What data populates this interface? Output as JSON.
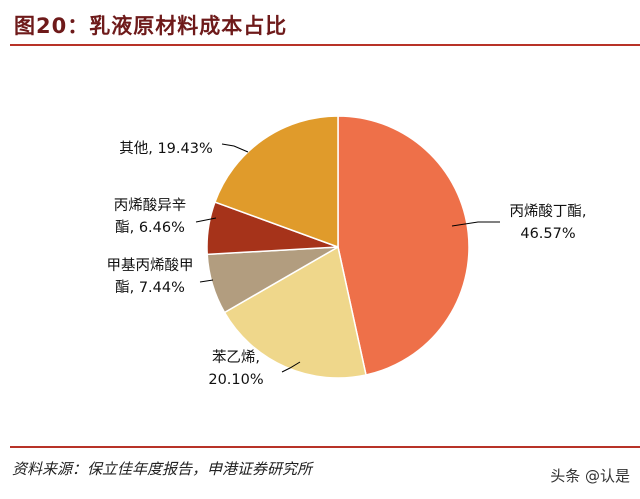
{
  "title": "图20：乳液原材料成本占比",
  "source": "资料来源：保立佳年度报告，申港证券研究所",
  "watermark": "头条 @认是",
  "chart_data": {
    "type": "pie",
    "title": "乳液原材料成本占比",
    "start": "12 o'clock, clockwise",
    "slices": [
      {
        "name": "丙烯酸丁酯",
        "value": 46.57,
        "label": [
          "丙烯酸丁酯,",
          "46.57%"
        ],
        "color": "#EE7049"
      },
      {
        "name": "苯乙烯",
        "value": 20.1,
        "label": [
          "苯乙烯,",
          "20.10%"
        ],
        "color": "#EFD78B"
      },
      {
        "name": "甲基丙烯酸甲酯",
        "value": 7.44,
        "label": [
          "甲基丙烯酸甲",
          "酯, 7.44%"
        ],
        "color": "#B29D7F"
      },
      {
        "name": "丙烯酸异辛酯",
        "value": 6.46,
        "label": [
          "丙烯酸异辛",
          "酯, 6.46%"
        ],
        "color": "#A6331A"
      },
      {
        "name": "其他",
        "value": 19.43,
        "label": [
          "其他, 19.43%"
        ],
        "color": "#E09B2B"
      }
    ]
  }
}
